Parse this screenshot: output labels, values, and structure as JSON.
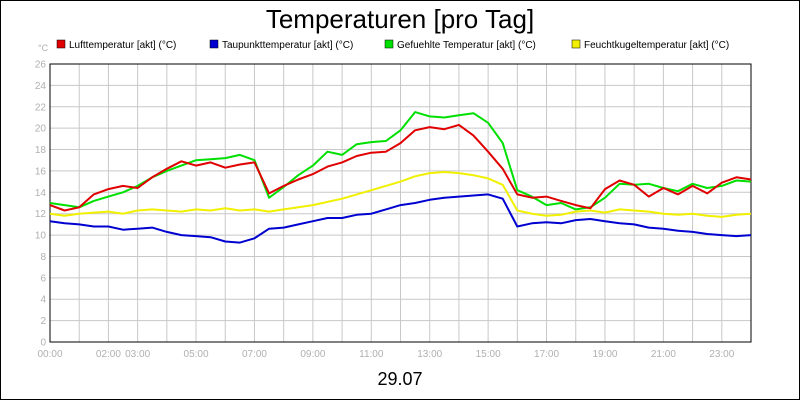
{
  "chart_data": {
    "type": "line",
    "title": "Temperaturen [pro Tag]",
    "ylabel": "°C",
    "xlabel": "29.07",
    "ylim": [
      0,
      26
    ],
    "yticks": [
      0,
      2,
      4,
      6,
      8,
      10,
      12,
      14,
      16,
      18,
      20,
      22,
      24,
      26
    ],
    "xlim": [
      0,
      24
    ],
    "x_unit": "hours",
    "xticks": [
      {
        "x": 0,
        "label": "00:00"
      },
      {
        "x": 2,
        "label": "02:00"
      },
      {
        "x": 3,
        "label": "03:00"
      },
      {
        "x": 5,
        "label": "05:00"
      },
      {
        "x": 7,
        "label": "07:00"
      },
      {
        "x": 9,
        "label": "09:00"
      },
      {
        "x": 11,
        "label": "11:00"
      },
      {
        "x": 13,
        "label": "13:00"
      },
      {
        "x": 15,
        "label": "15:00"
      },
      {
        "x": 17,
        "label": "17:00"
      },
      {
        "x": 19,
        "label": "19:00"
      },
      {
        "x": 21,
        "label": "21:00"
      },
      {
        "x": 23,
        "label": "23:00"
      }
    ],
    "grid": true,
    "legend_position": "top",
    "x": [
      0,
      0.5,
      1,
      1.5,
      2,
      2.5,
      3,
      3.5,
      4,
      4.5,
      5,
      5.5,
      6,
      6.5,
      7,
      7.5,
      8,
      8.5,
      9,
      9.5,
      10,
      10.5,
      11,
      11.5,
      12,
      12.5,
      13,
      13.5,
      14,
      14.5,
      15,
      15.5,
      16,
      16.5,
      17,
      17.5,
      18,
      18.5,
      19,
      19.5,
      20,
      20.5,
      21,
      21.5,
      22,
      22.5,
      23,
      23.5,
      24
    ],
    "series": [
      {
        "name": "Lufttemperatur [akt] (°C)",
        "color": "#e00000",
        "values": [
          12.8,
          12.3,
          12.6,
          13.8,
          14.3,
          14.6,
          14.4,
          15.4,
          16.2,
          16.9,
          16.5,
          16.8,
          16.3,
          16.6,
          16.8,
          13.9,
          14.6,
          15.2,
          15.7,
          16.4,
          16.8,
          17.4,
          17.7,
          17.8,
          18.6,
          19.8,
          20.1,
          19.9,
          20.3,
          19.3,
          17.8,
          16.2,
          13.8,
          13.5,
          13.6,
          13.2,
          12.8,
          12.5,
          14.3,
          15.1,
          14.7,
          13.6,
          14.4,
          13.8,
          14.6,
          13.9,
          14.9,
          15.4,
          15.2
        ]
      },
      {
        "name": "Taupunkttemperatur [akt] (°C)",
        "color": "#0000d0",
        "values": [
          11.3,
          11.1,
          11.0,
          10.8,
          10.8,
          10.5,
          10.6,
          10.7,
          10.3,
          10.0,
          9.9,
          9.8,
          9.4,
          9.3,
          9.7,
          10.6,
          10.7,
          11.0,
          11.3,
          11.6,
          11.6,
          11.9,
          12.0,
          12.4,
          12.8,
          13.0,
          13.3,
          13.5,
          13.6,
          13.7,
          13.8,
          13.4,
          10.8,
          11.1,
          11.2,
          11.1,
          11.4,
          11.5,
          11.3,
          11.1,
          11.0,
          10.7,
          10.6,
          10.4,
          10.3,
          10.1,
          10.0,
          9.9,
          10.0
        ]
      },
      {
        "name": "Gefuehlte Temperatur [akt] (°C)",
        "color": "#00e000",
        "values": [
          13.0,
          12.8,
          12.6,
          13.2,
          13.6,
          14.0,
          14.6,
          15.4,
          16.0,
          16.5,
          17.0,
          17.1,
          17.2,
          17.5,
          17.0,
          13.5,
          14.5,
          15.6,
          16.5,
          17.8,
          17.5,
          18.5,
          18.7,
          18.8,
          19.8,
          21.5,
          21.1,
          21.0,
          21.2,
          21.4,
          20.5,
          18.6,
          14.2,
          13.6,
          12.8,
          13.0,
          12.4,
          12.6,
          13.5,
          14.8,
          14.7,
          14.8,
          14.4,
          14.1,
          14.8,
          14.4,
          14.6,
          15.1,
          15.0
        ]
      },
      {
        "name": "Feuchtkugeltemperatur [akt] (°C)",
        "color": "#f0f000",
        "values": [
          12.0,
          11.8,
          12.0,
          12.1,
          12.2,
          12.0,
          12.3,
          12.4,
          12.3,
          12.2,
          12.4,
          12.3,
          12.5,
          12.3,
          12.4,
          12.2,
          12.4,
          12.6,
          12.8,
          13.1,
          13.4,
          13.8,
          14.2,
          14.6,
          15.0,
          15.5,
          15.8,
          15.9,
          15.8,
          15.6,
          15.3,
          14.7,
          12.3,
          12.0,
          11.8,
          11.9,
          12.2,
          12.3,
          12.1,
          12.4,
          12.3,
          12.2,
          12.0,
          11.9,
          12.0,
          11.8,
          11.7,
          11.9,
          12.0
        ]
      }
    ],
    "date_label": "29.07"
  }
}
